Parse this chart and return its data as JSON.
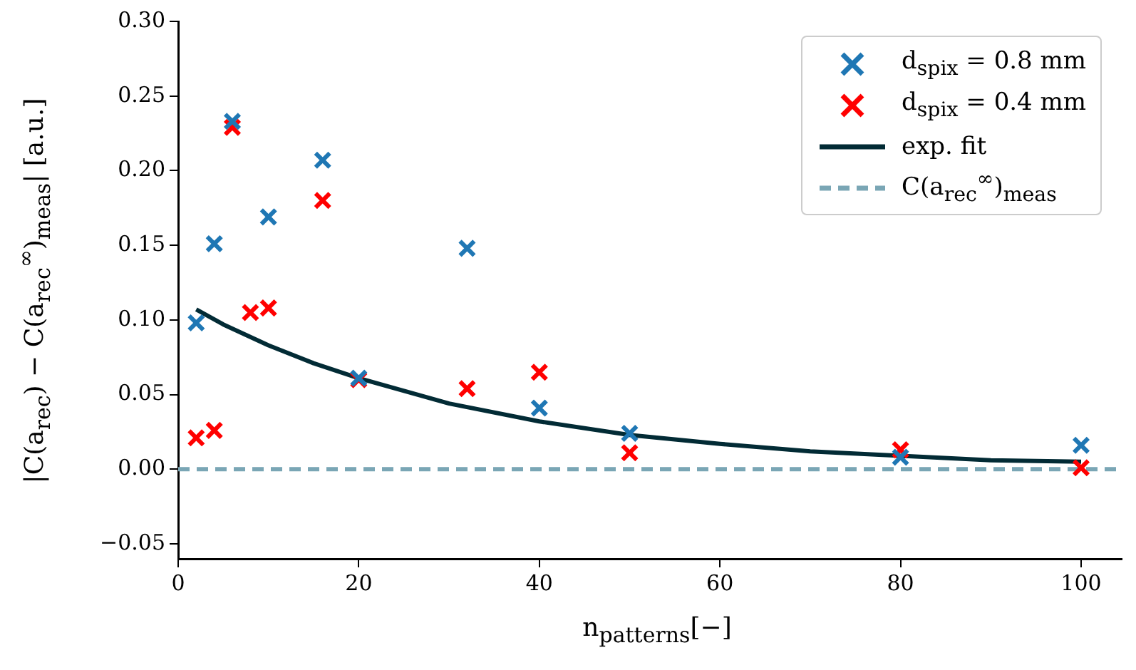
{
  "chart_data": {
    "type": "scatter",
    "xlabel": "n$_{patterns}$[−]",
    "ylabel": "|C(a$_{rec}$) − C(a$_{rec}$$^{∞}$)$_{meas}$| [a.u.]",
    "xlim": [
      0,
      104.5
    ],
    "xticks": [
      0,
      20,
      40,
      60,
      80,
      100
    ],
    "ylim": [
      -0.06,
      0.3
    ],
    "yticks": [
      {
        "value": -0.05,
        "label": "−0.05"
      },
      {
        "value": 0,
        "label": "0.00"
      },
      {
        "value": 0.05,
        "label": "0.05"
      },
      {
        "value": 0.1,
        "label": "0.10"
      },
      {
        "value": 0.15,
        "label": "0.15"
      },
      {
        "value": 0.2,
        "label": "0.20"
      },
      {
        "value": 0.25,
        "label": "0.25"
      },
      {
        "value": 0.3,
        "label": "0.30"
      }
    ],
    "grid": false,
    "legend": "top right",
    "marker": "cross",
    "series": [
      {
        "name": "d$_{spix}$ = 0.8 mm",
        "color": "#1f77b4",
        "x": [
          2,
          4,
          6,
          10,
          16,
          20,
          32,
          40,
          50,
          80,
          100
        ],
        "values": [
          0.098,
          0.151,
          0.233,
          0.169,
          0.207,
          0.061,
          0.148,
          0.041,
          0.024,
          0.008,
          0.016
        ]
      },
      {
        "name": "d$_{spix}$ = 0.4 mm",
        "color": "#ff0000",
        "x": [
          2,
          4,
          6,
          8,
          10,
          16,
          20,
          32,
          40,
          50,
          80,
          100
        ],
        "values": [
          0.021,
          0.026,
          0.229,
          0.105,
          0.108,
          0.18,
          0.06,
          0.054,
          0.065,
          0.011,
          0.013,
          0.001
        ]
      },
      {
        "name": "exp. fit",
        "type": "line",
        "color": "#022b35",
        "marker": "none",
        "line_style": "solid",
        "x": [
          2,
          5,
          10,
          15,
          20,
          30,
          40,
          50,
          60,
          70,
          80,
          90,
          100
        ],
        "values": [
          0.107,
          0.097,
          0.083,
          0.071,
          0.061,
          0.044,
          0.032,
          0.023,
          0.017,
          0.012,
          0.009,
          0.006,
          0.005
        ]
      }
    ],
    "ref_lines": [
      {
        "axis": "y",
        "value": 0,
        "label": "C(a$_{rec}$$^{∞}$)$_{meas}$",
        "color": "#7aa6b5",
        "line_style": "dashed"
      }
    ]
  }
}
